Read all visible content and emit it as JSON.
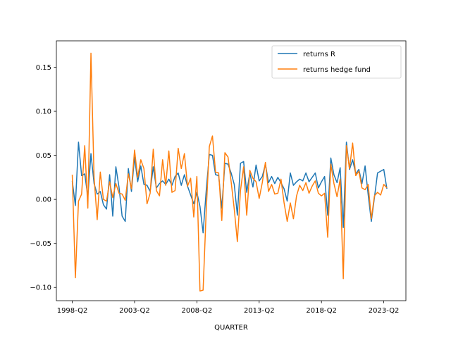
{
  "chart_data": {
    "type": "line",
    "xlabel": "QUARTER",
    "ylabel": "",
    "x_start": "1998-Q2",
    "x_end": "2023-Q4",
    "xticks": [
      "1998-Q2",
      "2003-Q2",
      "2008-Q2",
      "2013-Q2",
      "2018-Q2",
      "2023-Q2"
    ],
    "yticks": [
      "−0.10",
      "−0.05",
      "0.00",
      "0.05",
      "0.10",
      "0.15"
    ],
    "ylim": [
      -0.115,
      0.18
    ],
    "legend_position": "upper right",
    "grid": false,
    "series": [
      {
        "name": "returns R",
        "color": "#1f77b4",
        "values": [
          0.021,
          -0.007,
          0.065,
          0.027,
          0.029,
          0.003,
          0.052,
          0.018,
          0.006,
          0.009,
          -0.006,
          -0.011,
          0.028,
          -0.019,
          0.037,
          0.014,
          -0.019,
          -0.025,
          0.035,
          0.009,
          0.048,
          0.02,
          0.038,
          0.017,
          0.016,
          0.009,
          0.037,
          0.013,
          0.018,
          0.021,
          0.017,
          0.023,
          0.016,
          0.026,
          0.03,
          0.016,
          0.028,
          0.015,
          0.005,
          -0.005,
          0.008,
          -0.008,
          -0.038,
          0.01,
          0.051,
          0.05,
          0.028,
          0.027,
          -0.01,
          0.041,
          0.04,
          0.03,
          0.017,
          -0.018,
          0.041,
          0.043,
          0.008,
          0.03,
          0.014,
          0.039,
          0.021,
          0.026,
          0.04,
          0.019,
          0.026,
          0.018,
          0.025,
          0.019,
          0.012,
          -0.002,
          0.03,
          0.016,
          0.02,
          0.023,
          0.021,
          0.03,
          0.02,
          0.025,
          0.03,
          0.013,
          0.02,
          0.026,
          -0.018,
          0.047,
          0.028,
          0.019,
          0.036,
          -0.032,
          0.065,
          0.034,
          0.045,
          0.029,
          0.034,
          0.018,
          0.038,
          0.005,
          -0.025,
          0.002,
          0.03,
          0.032,
          0.034,
          0.012
        ]
      },
      {
        "name": "returns hedge fund",
        "color": "#ff7f0e",
        "values": [
          0.028,
          -0.089,
          -0.002,
          0.006,
          0.061,
          -0.01,
          0.166,
          0.025,
          -0.023,
          0.031,
          0.0,
          -0.002,
          0.02,
          0.002,
          0.018,
          0.007,
          0.006,
          -0.001,
          0.029,
          0.012,
          0.056,
          0.025,
          0.045,
          0.035,
          -0.005,
          0.007,
          0.057,
          0.01,
          0.004,
          0.045,
          0.016,
          0.055,
          0.008,
          0.01,
          0.058,
          0.035,
          0.052,
          0.015,
          0.024,
          -0.02,
          0.026,
          -0.104,
          -0.103,
          -0.013,
          0.06,
          0.072,
          0.031,
          0.03,
          -0.024,
          0.053,
          0.048,
          0.02,
          -0.011,
          -0.048,
          0.01,
          0.037,
          -0.018,
          0.033,
          0.024,
          0.02,
          0.001,
          0.019,
          0.042,
          0.009,
          0.017,
          0.006,
          0.007,
          0.023,
          -0.004,
          -0.025,
          -0.004,
          -0.022,
          0.004,
          0.016,
          0.01,
          0.019,
          0.007,
          0.015,
          0.021,
          0.007,
          0.004,
          0.007,
          -0.043,
          0.04,
          0.018,
          0.003,
          0.023,
          -0.09,
          0.061,
          0.035,
          0.064,
          0.027,
          0.032,
          0.013,
          0.011,
          0.017,
          -0.022,
          0.004,
          0.008,
          0.005,
          0.017,
          0.013
        ]
      }
    ]
  }
}
